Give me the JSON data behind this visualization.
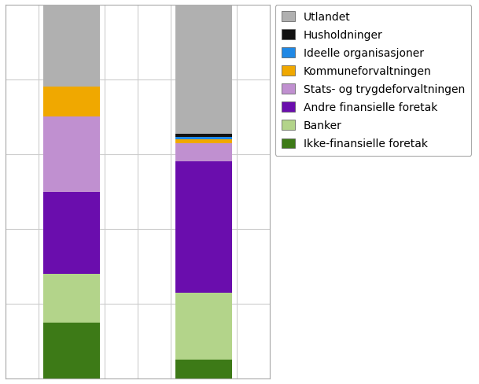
{
  "segments": [
    {
      "label": "Ikke-finansielle foretak",
      "color": "#3d7a17",
      "values": [
        15,
        5
      ]
    },
    {
      "label": "Banker",
      "color": "#b3d48a",
      "values": [
        13,
        18
      ]
    },
    {
      "label": "Andre finansielle foretak",
      "color": "#6a0dad",
      "values": [
        22,
        35
      ]
    },
    {
      "label": "Stats- og trygdeforvaltningen",
      "color": "#c090d0",
      "values": [
        20,
        5
      ]
    },
    {
      "label": "Kommuneforvaltningen",
      "color": "#f0a800",
      "values": [
        8,
        1.0
      ]
    },
    {
      "label": "Ideelle organisasjoner",
      "color": "#1f88e5",
      "values": [
        0,
        0.7
      ]
    },
    {
      "label": "Husholdninger",
      "color": "#111111",
      "values": [
        0,
        0.8
      ]
    },
    {
      "label": "Utlandet",
      "color": "#b0b0b0",
      "values": [
        22,
        34.5
      ]
    }
  ],
  "bar_width": 0.85,
  "bar_positions": [
    1,
    3
  ],
  "xlim": [
    0.0,
    4.0
  ],
  "ylim": [
    0,
    100
  ],
  "ytick_interval": 20,
  "grid_color": "#cccccc",
  "background_color": "#ffffff",
  "plot_area_border_color": "#aaaaaa",
  "legend_order": [
    7,
    6,
    5,
    4,
    3,
    2,
    1,
    0
  ],
  "legend_fontsize": 10,
  "legend_labelspacing": 0.65
}
